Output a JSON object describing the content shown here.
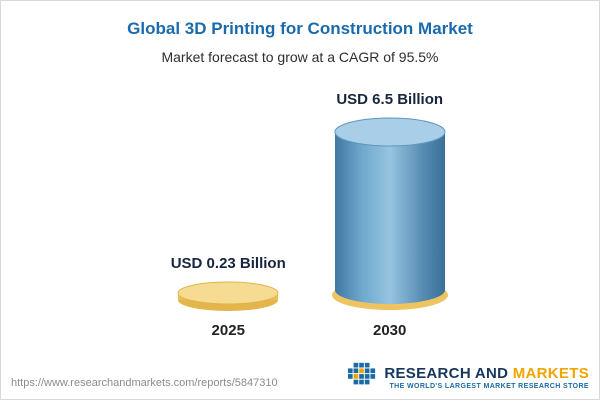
{
  "header": {
    "title": "Global 3D Printing for Construction Market",
    "subtitle": "Market forecast to grow at a CAGR of 95.5%"
  },
  "chart_data": {
    "type": "bar",
    "title": "Global 3D Printing for Construction Market",
    "subtitle": "Market forecast to grow at a CAGR of 95.5%",
    "categories": [
      "2025",
      "2030"
    ],
    "values": [
      0.23,
      6.5
    ],
    "value_labels": [
      "USD 0.23 Billion",
      "USD 6.5 Billion"
    ],
    "unit": "USD Billion",
    "cagr_percent": 95.5,
    "legend_position": "none",
    "grid": false,
    "colors": {
      "bar_2030_body": "#4e88b5",
      "bar_2030_top": "#a9cee7",
      "bar_2025_top": "#f6dc92",
      "bar_2025_rim": "#e3b54a",
      "base_accent": "#edc45f"
    }
  },
  "footer": {
    "url": "https://www.researchandmarkets.com/reports/5847310",
    "brand": {
      "name_part1": "RESEARCH AND ",
      "name_part2": "MARKETS",
      "tagline": "THE WORLD'S LARGEST MARKET RESEARCH STORE"
    }
  }
}
